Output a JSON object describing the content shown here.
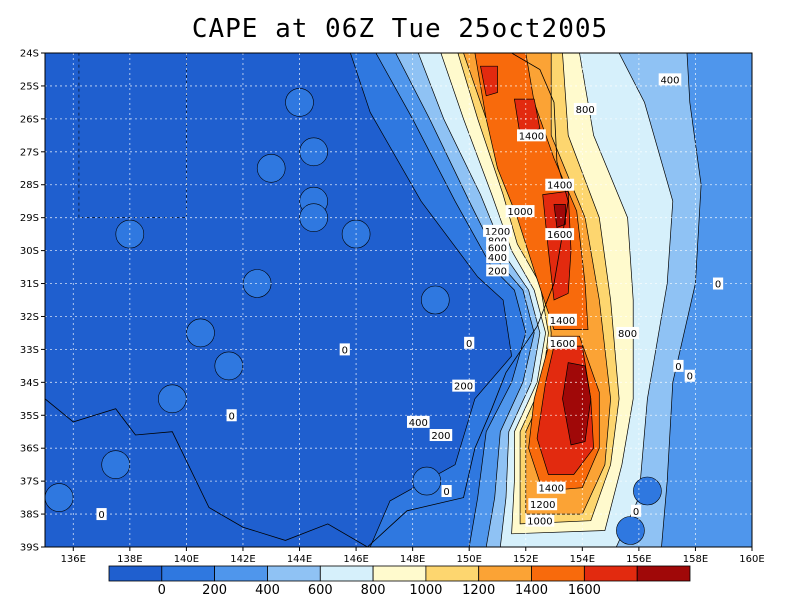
{
  "title": "CAPE at 06Z Tue 25oct2005",
  "chart_data": {
    "type": "heatmap",
    "title": "CAPE at 06Z Tue 25oct2005",
    "x_range": [
      135,
      160
    ],
    "y_range": [
      -39,
      -24
    ],
    "x_ticks": [
      "136E",
      "138E",
      "140E",
      "142E",
      "144E",
      "146E",
      "148E",
      "150E",
      "152E",
      "154E",
      "156E",
      "158E",
      "160E"
    ],
    "x_tick_values": [
      136,
      138,
      140,
      142,
      144,
      146,
      148,
      150,
      152,
      154,
      156,
      158,
      160
    ],
    "y_ticks": [
      "24S",
      "25S",
      "26S",
      "27S",
      "28S",
      "29S",
      "30S",
      "31S",
      "32S",
      "33S",
      "34S",
      "35S",
      "36S",
      "37S",
      "38S",
      "39S"
    ],
    "y_tick_values": [
      -24,
      -25,
      -26,
      -27,
      -28,
      -29,
      -30,
      -31,
      -32,
      -33,
      -34,
      -35,
      -36,
      -37,
      -38,
      -39
    ],
    "grid": true,
    "colorbar": {
      "levels": [
        0,
        200,
        400,
        600,
        800,
        1000,
        1200,
        1400,
        1600
      ],
      "labels": [
        "0",
        "200",
        "400",
        "600",
        "800",
        "1000",
        "1200",
        "1400",
        "1600"
      ],
      "colors": [
        "#1f5fcf",
        "#2f78e0",
        "#4f96ec",
        "#8fc2f4",
        "#d6f0fb",
        "#fffacd",
        "#fdd66f",
        "#fba335",
        "#f86a0c",
        "#e22a0f",
        "#a00808"
      ]
    },
    "contour_labels": [
      {
        "text": "400",
        "lon": 157.1,
        "lat": -24.8
      },
      {
        "text": "800",
        "lon": 154.1,
        "lat": -25.7
      },
      {
        "text": "1400",
        "lon": 152.2,
        "lat": -26.5
      },
      {
        "text": "1400",
        "lon": 153.2,
        "lat": -28.0
      },
      {
        "text": "1000",
        "lon": 151.8,
        "lat": -28.8
      },
      {
        "text": "1200",
        "lon": 151.0,
        "lat": -29.4
      },
      {
        "text": "800",
        "lon": 151.0,
        "lat": -29.7
      },
      {
        "text": "600",
        "lon": 151.0,
        "lat": -29.9
      },
      {
        "text": "400",
        "lon": 151.0,
        "lat": -30.2
      },
      {
        "text": "200",
        "lon": 151.0,
        "lat": -30.6
      },
      {
        "text": "1600",
        "lon": 153.2,
        "lat": -29.5
      },
      {
        "text": "0",
        "lon": 158.8,
        "lat": -31.0
      },
      {
        "text": "1400",
        "lon": 153.3,
        "lat": -32.1
      },
      {
        "text": "800",
        "lon": 155.6,
        "lat": -32.5
      },
      {
        "text": "1600",
        "lon": 153.3,
        "lat": -32.8
      },
      {
        "text": "0",
        "lon": 150.0,
        "lat": -32.8
      },
      {
        "text": "0",
        "lon": 145.6,
        "lat": -33.0
      },
      {
        "text": "0",
        "lon": 157.4,
        "lat": -33.5
      },
      {
        "text": "0",
        "lon": 157.8,
        "lat": -33.8
      },
      {
        "text": "200",
        "lon": 149.8,
        "lat": -34.1
      },
      {
        "text": "0",
        "lon": 141.6,
        "lat": -35.0
      },
      {
        "text": "400",
        "lon": 148.2,
        "lat": -35.2
      },
      {
        "text": "200",
        "lon": 149.0,
        "lat": -35.6
      },
      {
        "text": "0",
        "lon": 149.2,
        "lat": -37.3
      },
      {
        "text": "1400",
        "lon": 152.9,
        "lat": -37.2
      },
      {
        "text": "1200",
        "lon": 152.6,
        "lat": -37.7
      },
      {
        "text": "0",
        "lon": 137.0,
        "lat": -38.0
      },
      {
        "text": "0",
        "lon": 155.9,
        "lat": -37.9
      },
      {
        "text": "1000",
        "lon": 152.5,
        "lat": -38.2
      }
    ]
  }
}
